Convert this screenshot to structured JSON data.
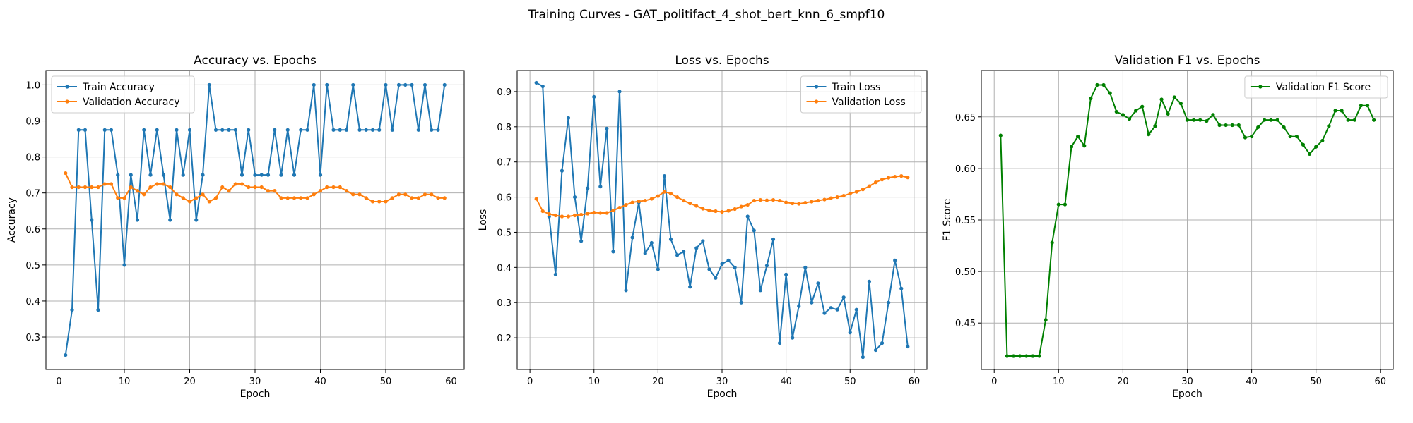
{
  "figure": {
    "suptitle": "Training Curves - GAT_politifact_4_shot_bert_knn_6_smpf10"
  },
  "chart_data": [
    {
      "type": "line",
      "title": "Accuracy vs. Epochs",
      "xlabel": "Epoch",
      "ylabel": "Accuracy",
      "xlim": [
        -2.0,
        62.0
      ],
      "ylim": [
        0.21,
        1.04
      ],
      "xticks": [
        0,
        10,
        20,
        30,
        40,
        50,
        60
      ],
      "yticks": [
        0.3,
        0.4,
        0.5,
        0.6,
        0.7,
        0.8,
        0.9,
        1.0
      ],
      "tick_decimals": 1,
      "grid": true,
      "legend": "top-left",
      "x": [
        1,
        2,
        3,
        4,
        5,
        6,
        7,
        8,
        9,
        10,
        11,
        12,
        13,
        14,
        15,
        16,
        17,
        18,
        19,
        20,
        21,
        22,
        23,
        24,
        25,
        26,
        27,
        28,
        29,
        30,
        31,
        32,
        33,
        34,
        35,
        36,
        37,
        38,
        39,
        40,
        41,
        42,
        43,
        44,
        45,
        46,
        47,
        48,
        49,
        50,
        51,
        52,
        53,
        54,
        55,
        56,
        57,
        58,
        59
      ],
      "series": [
        {
          "name": "Train Accuracy",
          "color": "#1f77b4",
          "values": [
            0.25,
            0.375,
            0.875,
            0.875,
            0.625,
            0.375,
            0.875,
            0.875,
            0.75,
            0.5,
            0.75,
            0.625,
            0.875,
            0.75,
            0.875,
            0.75,
            0.625,
            0.875,
            0.75,
            0.875,
            0.625,
            0.75,
            1.0,
            0.875,
            0.875,
            0.875,
            0.875,
            0.75,
            0.875,
            0.75,
            0.75,
            0.75,
            0.875,
            0.75,
            0.875,
            0.75,
            0.875,
            0.875,
            1.0,
            0.75,
            1.0,
            0.875,
            0.875,
            0.875,
            1.0,
            0.875,
            0.875,
            0.875,
            0.875,
            1.0,
            0.875,
            1.0,
            1.0,
            1.0,
            0.875,
            1.0,
            0.875,
            0.875,
            1.0
          ]
        },
        {
          "name": "Validation Accuracy",
          "color": "#ff7f0e",
          "values": [
            0.755,
            0.716,
            0.716,
            0.716,
            0.716,
            0.716,
            0.725,
            0.725,
            0.686,
            0.686,
            0.716,
            0.706,
            0.696,
            0.716,
            0.725,
            0.725,
            0.716,
            0.696,
            0.686,
            0.676,
            0.686,
            0.696,
            0.676,
            0.686,
            0.716,
            0.706,
            0.725,
            0.725,
            0.716,
            0.716,
            0.716,
            0.706,
            0.706,
            0.686,
            0.686,
            0.686,
            0.686,
            0.686,
            0.696,
            0.706,
            0.716,
            0.716,
            0.716,
            0.706,
            0.696,
            0.696,
            0.686,
            0.676,
            0.676,
            0.676,
            0.686,
            0.696,
            0.696,
            0.686,
            0.686,
            0.696,
            0.696,
            0.686,
            0.686
          ]
        }
      ]
    },
    {
      "type": "line",
      "title": "Loss vs. Epochs",
      "xlabel": "Epoch",
      "ylabel": "Loss",
      "xlim": [
        -2.0,
        62.0
      ],
      "ylim": [
        0.11,
        0.96
      ],
      "xticks": [
        0,
        10,
        20,
        30,
        40,
        50,
        60
      ],
      "yticks": [
        0.2,
        0.3,
        0.4,
        0.5,
        0.6,
        0.7,
        0.8,
        0.9
      ],
      "tick_decimals": 1,
      "grid": true,
      "legend": "top-right",
      "x": [
        1,
        2,
        3,
        4,
        5,
        6,
        7,
        8,
        9,
        10,
        11,
        12,
        13,
        14,
        15,
        16,
        17,
        18,
        19,
        20,
        21,
        22,
        23,
        24,
        25,
        26,
        27,
        28,
        29,
        30,
        31,
        32,
        33,
        34,
        35,
        36,
        37,
        38,
        39,
        40,
        41,
        42,
        43,
        44,
        45,
        46,
        47,
        48,
        49,
        50,
        51,
        52,
        53,
        54,
        55,
        56,
        57,
        58,
        59
      ],
      "series": [
        {
          "name": "Train Loss",
          "color": "#1f77b4",
          "values": [
            0.925,
            0.915,
            0.545,
            0.38,
            0.675,
            0.825,
            0.6,
            0.475,
            0.625,
            0.885,
            0.63,
            0.795,
            0.445,
            0.9,
            0.335,
            0.485,
            0.585,
            0.44,
            0.47,
            0.395,
            0.66,
            0.48,
            0.435,
            0.445,
            0.345,
            0.455,
            0.475,
            0.395,
            0.37,
            0.41,
            0.42,
            0.4,
            0.3,
            0.545,
            0.505,
            0.335,
            0.405,
            0.48,
            0.185,
            0.38,
            0.2,
            0.29,
            0.4,
            0.3,
            0.355,
            0.27,
            0.285,
            0.28,
            0.315,
            0.215,
            0.28,
            0.145,
            0.36,
            0.165,
            0.185,
            0.3,
            0.42,
            0.34,
            0.175
          ]
        },
        {
          "name": "Validation Loss",
          "color": "#ff7f0e",
          "values": [
            0.595,
            0.56,
            0.552,
            0.548,
            0.545,
            0.545,
            0.548,
            0.55,
            0.553,
            0.556,
            0.555,
            0.555,
            0.562,
            0.57,
            0.578,
            0.585,
            0.588,
            0.59,
            0.595,
            0.603,
            0.615,
            0.61,
            0.6,
            0.59,
            0.582,
            0.575,
            0.567,
            0.562,
            0.56,
            0.558,
            0.561,
            0.566,
            0.573,
            0.578,
            0.59,
            0.592,
            0.591,
            0.592,
            0.59,
            0.585,
            0.582,
            0.581,
            0.584,
            0.587,
            0.59,
            0.593,
            0.597,
            0.6,
            0.604,
            0.61,
            0.615,
            0.622,
            0.631,
            0.642,
            0.65,
            0.655,
            0.658,
            0.66,
            0.656
          ]
        }
      ]
    },
    {
      "type": "line",
      "title": "Validation F1 vs. Epochs",
      "xlabel": "Epoch",
      "ylabel": "F1 Score",
      "xlim": [
        -2.0,
        62.0
      ],
      "ylim": [
        0.405,
        0.695
      ],
      "xticks": [
        0,
        10,
        20,
        30,
        40,
        50,
        60
      ],
      "yticks": [
        0.45,
        0.5,
        0.55,
        0.6,
        0.65
      ],
      "tick_decimals": 2,
      "grid": true,
      "legend": "top-right",
      "x": [
        1,
        2,
        3,
        4,
        5,
        6,
        7,
        8,
        9,
        10,
        11,
        12,
        13,
        14,
        15,
        16,
        17,
        18,
        19,
        20,
        21,
        22,
        23,
        24,
        25,
        26,
        27,
        28,
        29,
        30,
        31,
        32,
        33,
        34,
        35,
        36,
        37,
        38,
        39,
        40,
        41,
        42,
        43,
        44,
        45,
        46,
        47,
        48,
        49,
        50,
        51,
        52,
        53,
        54,
        55,
        56,
        57,
        58,
        59
      ],
      "series": [
        {
          "name": "Validation F1 Score",
          "color": "#008000",
          "values": [
            0.632,
            0.418,
            0.418,
            0.418,
            0.418,
            0.418,
            0.418,
            0.453,
            0.528,
            0.565,
            0.565,
            0.621,
            0.631,
            0.622,
            0.668,
            0.681,
            0.681,
            0.673,
            0.655,
            0.652,
            0.648,
            0.656,
            0.66,
            0.633,
            0.641,
            0.667,
            0.653,
            0.669,
            0.663,
            0.647,
            0.647,
            0.647,
            0.646,
            0.652,
            0.642,
            0.642,
            0.642,
            0.642,
            0.63,
            0.631,
            0.64,
            0.647,
            0.647,
            0.647,
            0.64,
            0.631,
            0.631,
            0.623,
            0.614,
            0.621,
            0.627,
            0.641,
            0.656,
            0.656,
            0.647,
            0.647,
            0.661,
            0.661,
            0.647
          ]
        }
      ]
    }
  ]
}
